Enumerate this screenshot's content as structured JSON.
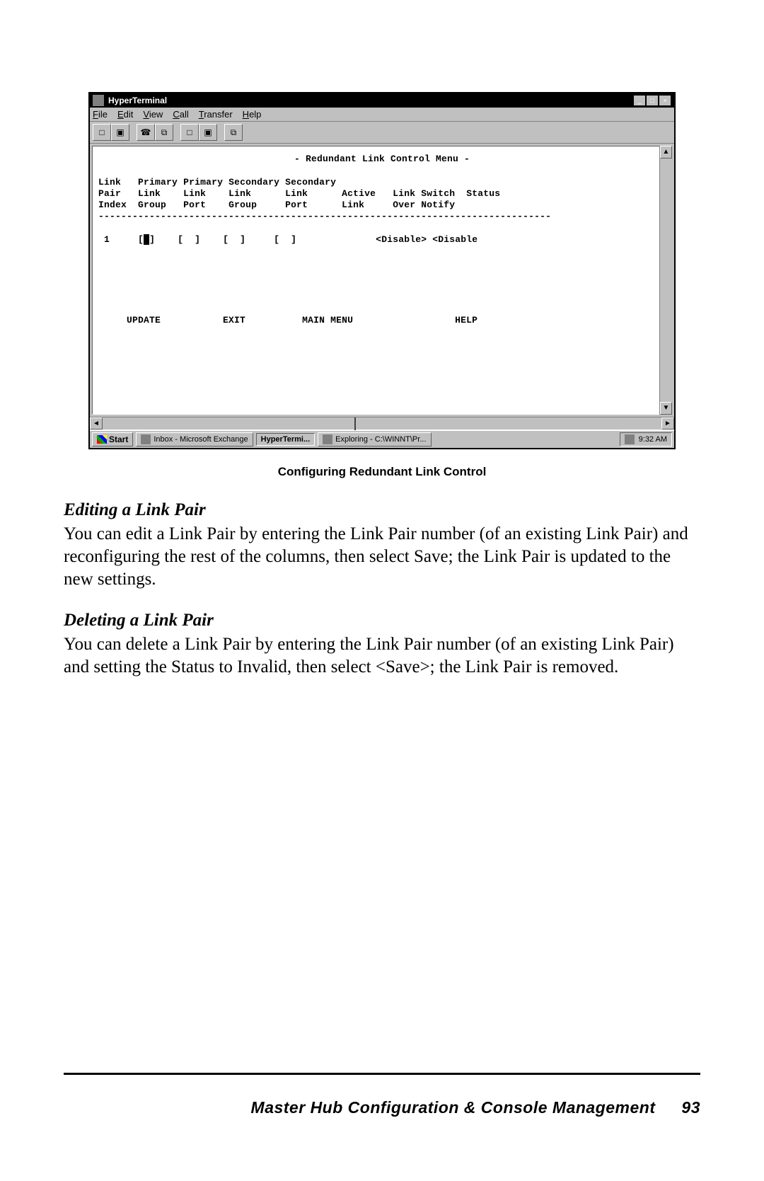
{
  "window": {
    "title": "HyperTerminal",
    "menus": {
      "file": "File",
      "edit": "Edit",
      "view": "View",
      "call": "Call",
      "transfer": "Transfer",
      "help": "Help"
    },
    "winbuttons": {
      "min": "_",
      "max": "□",
      "close": "×"
    },
    "toolbar_icons": [
      "□",
      "▣",
      "☎",
      "⧉",
      "□",
      "▣",
      "⧉"
    ],
    "scroll": {
      "up": "▲",
      "down": "▼",
      "left": "◄",
      "right": "►"
    }
  },
  "terminal": {
    "title": "- Redundant Link Control Menu -",
    "headers": {
      "c1a": "Link",
      "c1b": "Pair",
      "c1c": "Index",
      "c2a": "Primary",
      "c2b": "Link",
      "c2c": "Group",
      "c3a": "Primary",
      "c3b": "Link",
      "c3c": "Port",
      "c4a": "Secondary",
      "c4b": "Link",
      "c4c": "Group",
      "c5a": "Secondary",
      "c5b": "Link",
      "c5c": "Port",
      "c6a": "Active",
      "c6b": "Link",
      "c7a": "Link Switch",
      "c7b": "Over Notify",
      "c8a": "Status"
    },
    "row": {
      "index": "1",
      "f1": "[",
      "cursor": "█",
      "f1b": "]",
      "f2": "[  ]",
      "f3": "[  ]",
      "f4": "[  ]",
      "switch": "<Disable>",
      "status": "<Disable"
    },
    "buttons": {
      "update": "UPDATE",
      "exit": "EXIT",
      "mainmenu": "MAIN MENU",
      "help": "HELP"
    }
  },
  "taskbar": {
    "start": "Start",
    "items": [
      {
        "label": "Inbox - Microsoft Exchange",
        "active": false
      },
      {
        "label": "HyperTermi...",
        "active": true
      },
      {
        "label": "Exploring - C:\\WINNT\\Pr...",
        "active": false
      }
    ],
    "clock": "9:32 AM"
  },
  "caption": "Configuring Redundant Link Control",
  "section1": {
    "title": "Editing a Link Pair",
    "body": "You can edit a Link Pair by entering the Link Pair number (of an existing Link Pair) and reconfiguring the rest of the columns, then select Save; the Link Pair is updated to the new settings."
  },
  "section2": {
    "title": "Deleting a Link Pair",
    "body": "You can delete a Link Pair by entering the Link Pair number (of an existing Link Pair) and setting the Status to Invalid, then select <Save>; the Link Pair is removed."
  },
  "footer": {
    "title": "Master Hub Configuration & Console Management",
    "page": "93"
  }
}
